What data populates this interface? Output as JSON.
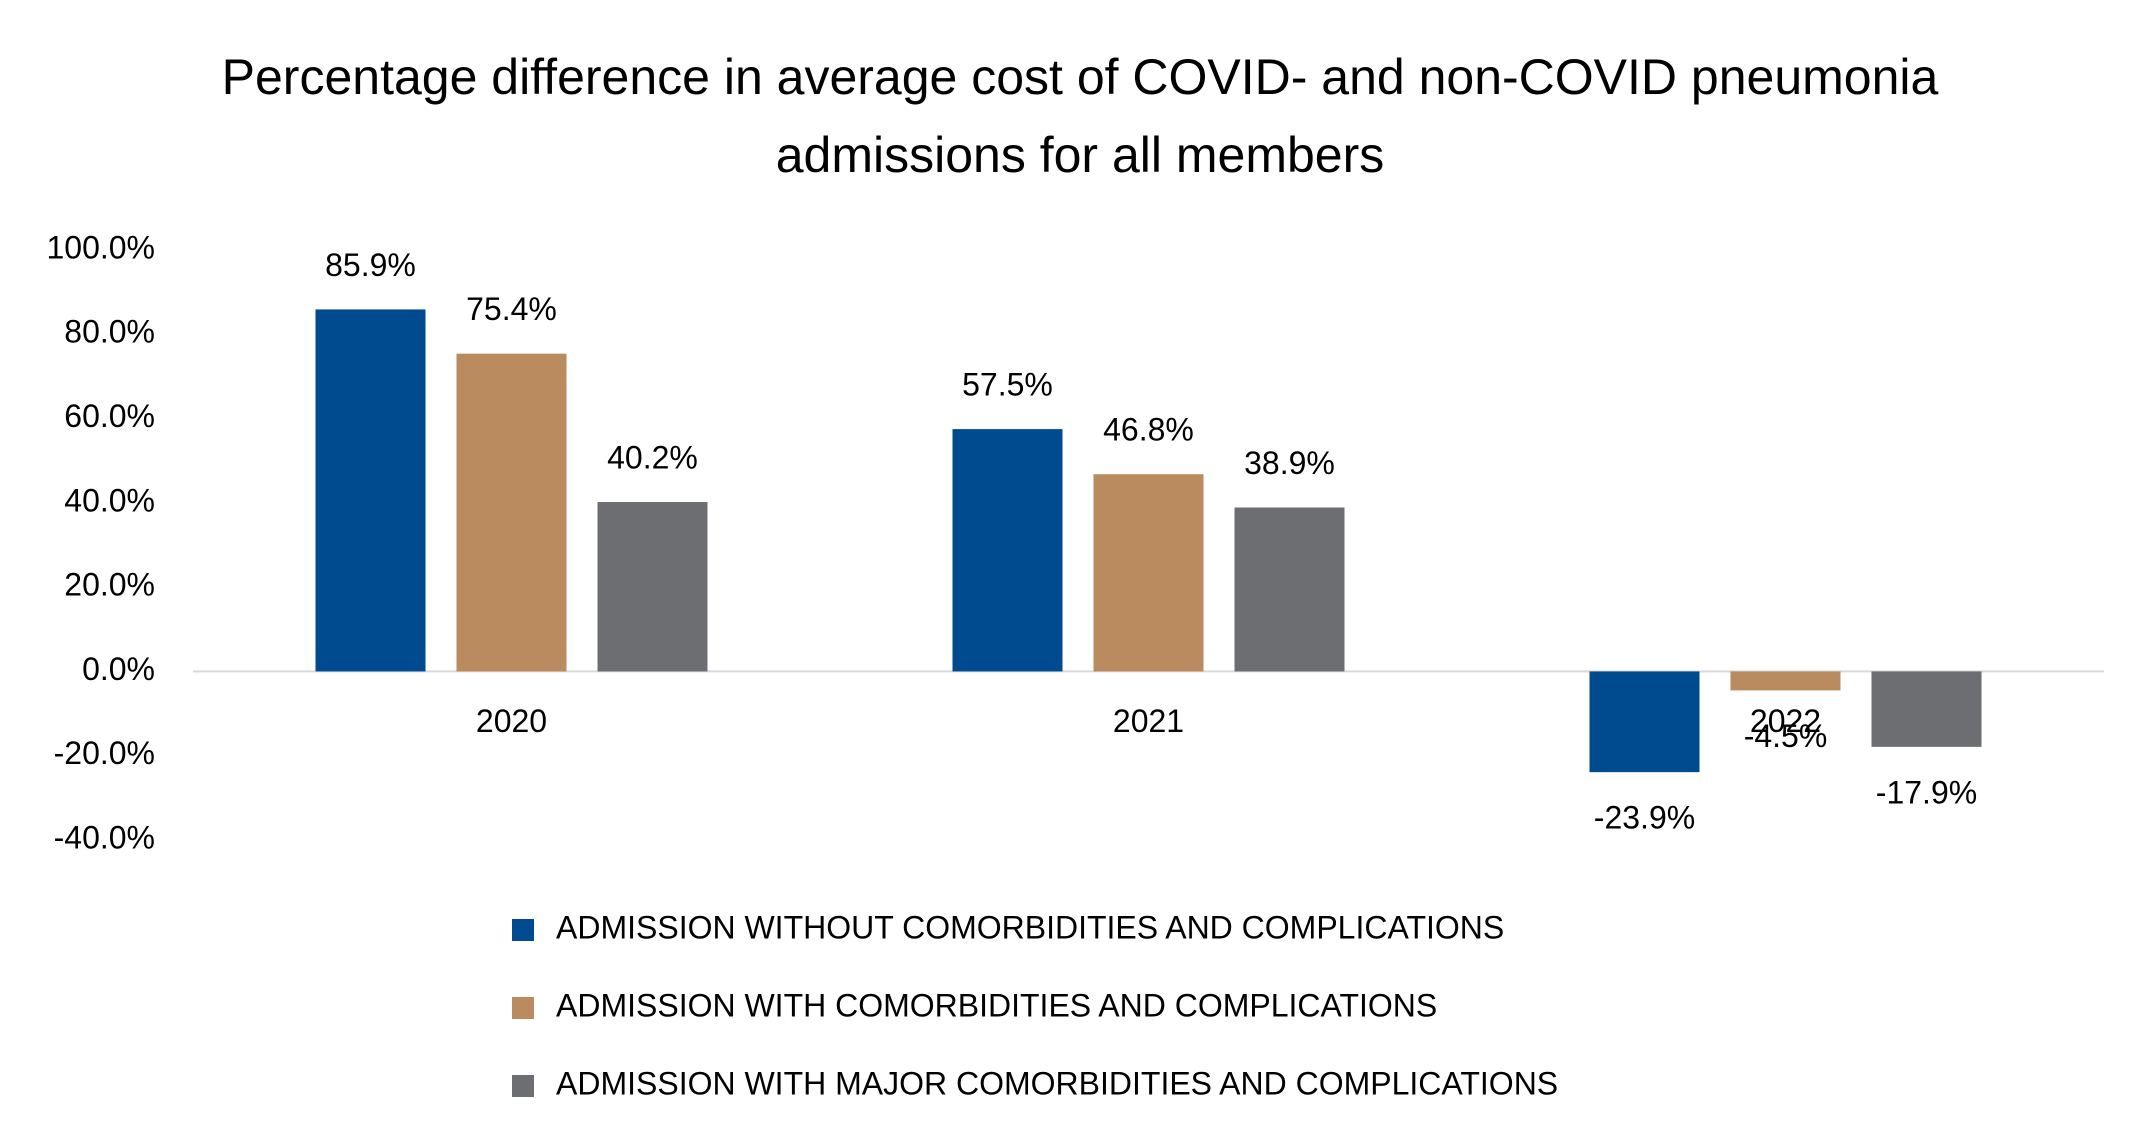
{
  "chart_data": {
    "type": "bar",
    "title": "Percentage difference in average cost of COVID- and non-COVID pneumonia admissions for all members",
    "categories": [
      "2020",
      "2021",
      "2022"
    ],
    "series": [
      {
        "name": "ADMISSION WITHOUT COMORBIDITIES AND COMPLICATIONS",
        "color": "#004a8f",
        "values": [
          85.9,
          57.5,
          -23.9
        ],
        "value_labels": [
          "85.9%",
          "57.5%",
          "-23.9%"
        ]
      },
      {
        "name": "ADMISSION WITH COMORBIDITIES AND COMPLICATIONS",
        "color": "#b98b5f",
        "values": [
          75.4,
          46.8,
          -4.5
        ],
        "value_labels": [
          "75.4%",
          "46.8%",
          "-4.5%"
        ]
      },
      {
        "name": "ADMISSION WITH MAJOR COMORBIDITIES AND COMPLICATIONS",
        "color": "#6d6e71",
        "values": [
          40.2,
          38.9,
          -17.9
        ],
        "value_labels": [
          "40.2%",
          "38.9%",
          "-17.9%"
        ]
      }
    ],
    "ylim": [
      -40,
      100
    ],
    "yticks": [
      {
        "value": -40,
        "label": "-40.0%"
      },
      {
        "value": -20,
        "label": "-20.0%"
      },
      {
        "value": 0,
        "label": "0.0%"
      },
      {
        "value": 20,
        "label": "20.0%"
      },
      {
        "value": 40,
        "label": "40.0%"
      },
      {
        "value": 60,
        "label": "60.0%"
      },
      {
        "value": 80,
        "label": "80.0%"
      },
      {
        "value": 100,
        "label": "100.0%"
      }
    ],
    "grid": false,
    "legend": "bottom"
  }
}
